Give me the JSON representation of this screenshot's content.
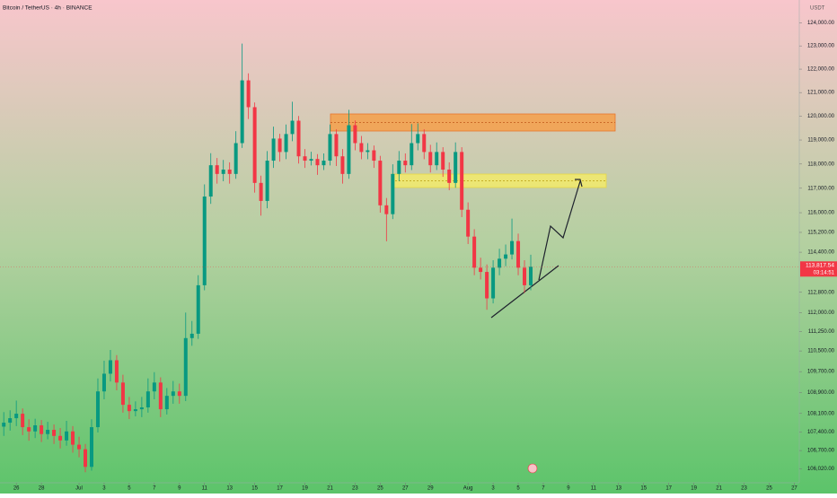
{
  "chart_data": {
    "type": "candlestick",
    "title": "Bitcoin / TetherUS · 4h · BINANCE",
    "currency": "USDT",
    "last_price_label": "113,817.54",
    "countdown": "03:14:51",
    "up_color": "#089981",
    "down_color": "#f23645",
    "log_scale": true,
    "x": [
      25,
      25.5,
      26,
      26.5,
      27,
      27.5,
      28,
      28.5,
      29,
      29.5,
      30,
      30.5,
      31,
      31.5,
      32,
      32.5,
      33,
      33.5,
      34,
      34.5,
      35,
      35.5,
      36,
      36.5,
      37,
      37.5,
      38,
      38.5,
      39,
      39.5,
      40,
      40.5,
      41,
      41.5,
      42,
      42.5,
      43,
      43.5,
      44,
      44.5,
      45,
      45.5,
      46,
      46.5,
      47,
      47.5,
      48,
      48.5,
      49,
      49.5,
      50,
      50.5,
      51,
      51.5,
      52,
      52.5,
      53,
      53.5,
      54,
      54.5,
      55,
      55.5,
      56,
      56.5,
      57,
      57.5,
      58,
      58.5,
      59,
      59.5,
      60,
      60.5,
      61,
      61.5,
      62,
      62.5,
      63,
      63.5,
      64,
      64.5,
      65,
      65.5,
      66,
      66.5,
      67
    ],
    "open": [
      107600,
      107750,
      107920,
      108090,
      107580,
      107420,
      107650,
      107320,
      107480,
      107250,
      107080,
      107420,
      106920,
      106750,
      106090,
      107580,
      108940,
      109620,
      110140,
      109280,
      108430,
      108190,
      108260,
      108330,
      108940,
      109280,
      108260,
      108770,
      108940,
      108770,
      111000,
      111170,
      113080,
      116660,
      117950,
      117590,
      117770,
      117590,
      118870,
      121520,
      120380,
      117220,
      116480,
      118140,
      119060,
      118500,
      119250,
      119810,
      118320,
      118140,
      118210,
      117950,
      118140,
      119250,
      118320,
      117590,
      119620,
      118870,
      118500,
      118570,
      118140,
      116300,
      115940,
      117590,
      118140,
      117950,
      118870,
      119250,
      118500,
      117950,
      118500,
      117770,
      117220,
      118500,
      116120,
      115030,
      113780,
      113610,
      112560,
      113780,
      114140,
      114310,
      114850,
      113780,
      113080
    ],
    "high": [
      108150,
      108220,
      108590,
      108290,
      107880,
      107900,
      107850,
      107780,
      107680,
      107550,
      107820,
      107620,
      107220,
      106950,
      107880,
      109440,
      110120,
      110540,
      110340,
      109580,
      108730,
      108560,
      108730,
      109440,
      109680,
      109480,
      109070,
      109340,
      109240,
      112000,
      111670,
      113480,
      117160,
      118450,
      118250,
      118170,
      118070,
      119370,
      123100,
      121820,
      120580,
      117520,
      118540,
      119560,
      119260,
      119650,
      120610,
      120010,
      118620,
      118510,
      118410,
      118440,
      119650,
      119450,
      118620,
      120270,
      119820,
      119170,
      118870,
      118770,
      118340,
      116600,
      117990,
      118540,
      118440,
      119670,
      119700,
      119450,
      118800,
      118900,
      118700,
      118070,
      118900,
      118700,
      116420,
      115330,
      114180,
      113910,
      114080,
      114540,
      114710,
      115760,
      115150,
      114080,
      114300
    ],
    "low": [
      107250,
      107450,
      107620,
      107280,
      107070,
      107170,
      107020,
      107120,
      106950,
      106780,
      106880,
      106620,
      106450,
      105890,
      105950,
      107380,
      108640,
      109320,
      108980,
      108130,
      107890,
      107990,
      107960,
      108130,
      108640,
      107960,
      108060,
      108470,
      108470,
      108570,
      110700,
      110970,
      112880,
      116360,
      117190,
      117290,
      117190,
      117390,
      118670,
      119880,
      116820,
      115880,
      116180,
      117840,
      118100,
      118200,
      118950,
      118020,
      117840,
      117940,
      117550,
      117750,
      117940,
      117920,
      117190,
      117390,
      118570,
      118200,
      118200,
      117840,
      116000,
      114840,
      115740,
      117290,
      117650,
      117750,
      118570,
      118200,
      117650,
      117750,
      117470,
      116920,
      117020,
      115820,
      114730,
      113480,
      113310,
      112110,
      112360,
      113480,
      113840,
      114110,
      113480,
      112780,
      112880
    ],
    "close": [
      107750,
      107920,
      108090,
      107580,
      107420,
      107650,
      107320,
      107480,
      107250,
      107080,
      107420,
      106920,
      106750,
      106090,
      107580,
      108940,
      109620,
      110140,
      109280,
      108430,
      108190,
      108260,
      108330,
      108940,
      109280,
      108260,
      108770,
      108940,
      108770,
      111000,
      111170,
      113080,
      116660,
      117950,
      117590,
      117770,
      117590,
      118870,
      121520,
      120380,
      117220,
      116480,
      118140,
      119060,
      118500,
      119250,
      119810,
      118320,
      118140,
      118210,
      117950,
      118140,
      119250,
      118320,
      117590,
      119620,
      118870,
      118500,
      118570,
      118140,
      116300,
      115940,
      117590,
      118140,
      117950,
      118870,
      119250,
      118500,
      117950,
      118500,
      117770,
      117220,
      118500,
      116120,
      115030,
      113780,
      113610,
      112560,
      113780,
      114140,
      114310,
      114850,
      113780,
      113080,
      113817.54
    ],
    "xlim": [
      24.7,
      88.4
    ],
    "xticks": [
      26,
      28,
      {
        "value": 31,
        "label": "Jul"
      },
      {
        "value": 33,
        "label": "3"
      },
      {
        "value": 35,
        "label": "5"
      },
      {
        "value": 37,
        "label": "7"
      },
      {
        "value": 39,
        "label": "9"
      },
      {
        "value": 41,
        "label": "11"
      },
      {
        "value": 43,
        "label": "13"
      },
      {
        "value": 45,
        "label": "15"
      },
      {
        "value": 47,
        "label": "17"
      },
      {
        "value": 49,
        "label": "19"
      },
      {
        "value": 51,
        "label": "21"
      },
      {
        "value": 53,
        "label": "23"
      },
      {
        "value": 55,
        "label": "25"
      },
      {
        "value": 57,
        "label": "27"
      },
      {
        "value": 59,
        "label": "29"
      },
      {
        "value": 62,
        "label": "Aug"
      },
      {
        "value": 64,
        "label": "3"
      },
      {
        "value": 66,
        "label": "5"
      },
      {
        "value": 68,
        "label": "7"
      },
      {
        "value": 70,
        "label": "9"
      },
      {
        "value": 72,
        "label": "11"
      },
      {
        "value": 74,
        "label": "13"
      },
      {
        "value": 76,
        "label": "15"
      },
      {
        "value": 78,
        "label": "17"
      },
      {
        "value": 80,
        "label": "19"
      },
      {
        "value": 82,
        "label": "21"
      },
      {
        "value": 84,
        "label": "23"
      },
      {
        "value": 86,
        "label": "25"
      },
      {
        "value": 88,
        "label": "27"
      }
    ],
    "ylim": [
      105500,
      125000
    ],
    "yticks": [
      {
        "value": 124000,
        "label": "124,000.00"
      },
      {
        "value": 123000,
        "label": "123,000.00"
      },
      {
        "value": 122000,
        "label": "122,000.00"
      },
      {
        "value": 121000,
        "label": "121,000.00"
      },
      {
        "value": 120000,
        "label": "120,000.00"
      },
      {
        "value": 119000,
        "label": "119,000.00"
      },
      {
        "value": 118000,
        "label": "118,000.00"
      },
      {
        "value": 117000,
        "label": "117,000.00"
      },
      {
        "value": 116000,
        "label": "116,000.00"
      },
      {
        "value": 115200,
        "label": "115,200.00"
      },
      {
        "value": 114400,
        "label": "114,400.00"
      },
      {
        "value": 112800,
        "label": "112,800.00"
      },
      {
        "value": 112000,
        "label": "112,000.00"
      },
      {
        "value": 111250,
        "label": "111,250.00"
      },
      {
        "value": 110500,
        "label": "110,500.00"
      },
      {
        "value": 109700,
        "label": "109,700.00"
      },
      {
        "value": 108900,
        "label": "108,900.00"
      },
      {
        "value": 108100,
        "label": "108,100.00"
      },
      {
        "value": 107400,
        "label": "107,400.00"
      },
      {
        "value": 106700,
        "label": "106,700.00"
      },
      {
        "value": 106020,
        "label": "106,020.00"
      }
    ]
  }
}
